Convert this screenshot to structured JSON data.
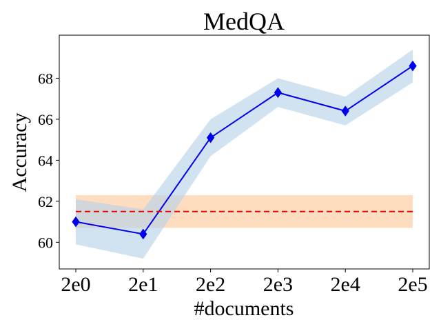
{
  "chart_data": {
    "type": "line",
    "title": "MedQA",
    "xlabel": "#documents",
    "ylabel": "Accuracy",
    "categories": [
      "2e0",
      "2e1",
      "2e2",
      "2e3",
      "2e4",
      "2e5"
    ],
    "ylim": [
      58.7,
      70.1
    ],
    "yticks": [
      60,
      62,
      64,
      66,
      68
    ],
    "grid": false,
    "series": [
      {
        "values": [
          61.0,
          60.4,
          65.1,
          67.3,
          66.4,
          68.6
        ],
        "lower": [
          59.9,
          59.2,
          64.2,
          66.6,
          65.7,
          67.8
        ],
        "upper": [
          62.1,
          61.6,
          66.0,
          68.0,
          67.1,
          69.4
        ],
        "style": "solid",
        "marker": "diamond",
        "color": "#0000ee",
        "band_color": "#b9d3e8"
      },
      {
        "values": [
          61.5,
          61.5,
          61.5,
          61.5,
          61.5,
          61.5
        ],
        "lower": [
          60.7,
          60.7,
          60.7,
          60.7,
          60.7,
          60.7
        ],
        "upper": [
          62.3,
          62.3,
          62.3,
          62.3,
          62.3,
          62.3
        ],
        "style": "dashed",
        "marker": "none",
        "color": "#ee0000",
        "band_color": "#fdd6b5"
      }
    ]
  }
}
